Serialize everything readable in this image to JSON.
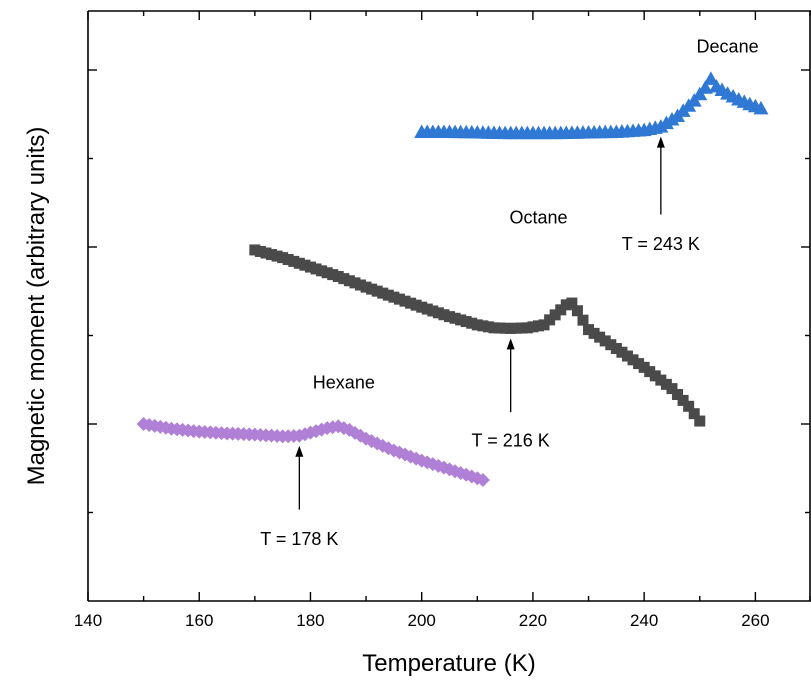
{
  "chart_data": {
    "type": "scatter",
    "xlabel": "Temperature (K)",
    "ylabel": "Magnetic moment (arbitrary units)",
    "xlim": [
      140,
      270
    ],
    "ylim": [
      0,
      10
    ],
    "x_ticks": [
      140,
      160,
      180,
      200,
      220,
      240,
      260
    ],
    "x_minor_ticks": [
      150,
      170,
      190,
      210,
      230,
      250,
      270
    ],
    "y_ticks_unlabeled": [
      3.0,
      6.0,
      9.0
    ],
    "y_minor_ticks": [
      1.5,
      4.5,
      7.5
    ],
    "grid": false,
    "series": [
      {
        "name": "Hexane",
        "marker": "diamond",
        "color": "#b07fd6",
        "points": [
          [
            150,
            3.0
          ],
          [
            155,
            2.92
          ],
          [
            160,
            2.87
          ],
          [
            165,
            2.84
          ],
          [
            170,
            2.82
          ],
          [
            175,
            2.79
          ],
          [
            178,
            2.8
          ],
          [
            181,
            2.88
          ],
          [
            183,
            2.93
          ],
          [
            185,
            2.96
          ],
          [
            187,
            2.9
          ],
          [
            190,
            2.75
          ],
          [
            195,
            2.55
          ],
          [
            200,
            2.38
          ],
          [
            205,
            2.23
          ],
          [
            211,
            2.05
          ]
        ]
      },
      {
        "name": "Octane",
        "marker": "square",
        "color": "#4a4a4a",
        "points": [
          [
            170,
            5.95
          ],
          [
            175,
            5.82
          ],
          [
            180,
            5.66
          ],
          [
            185,
            5.5
          ],
          [
            190,
            5.32
          ],
          [
            195,
            5.15
          ],
          [
            200,
            4.98
          ],
          [
            205,
            4.82
          ],
          [
            210,
            4.68
          ],
          [
            213,
            4.63
          ],
          [
            216,
            4.62
          ],
          [
            219,
            4.63
          ],
          [
            222,
            4.68
          ],
          [
            224,
            4.85
          ],
          [
            226,
            5.02
          ],
          [
            227,
            5.05
          ],
          [
            228,
            4.92
          ],
          [
            230,
            4.6
          ],
          [
            235,
            4.28
          ],
          [
            240,
            3.96
          ],
          [
            245,
            3.6
          ],
          [
            248,
            3.3
          ],
          [
            250,
            3.05
          ]
        ]
      },
      {
        "name": "Decane",
        "marker": "triangle",
        "color": "#2f78d4",
        "points": [
          [
            200,
            7.95
          ],
          [
            205,
            7.95
          ],
          [
            210,
            7.94
          ],
          [
            215,
            7.93
          ],
          [
            220,
            7.93
          ],
          [
            225,
            7.93
          ],
          [
            230,
            7.94
          ],
          [
            235,
            7.95
          ],
          [
            240,
            7.98
          ],
          [
            243,
            8.04
          ],
          [
            246,
            8.22
          ],
          [
            249,
            8.48
          ],
          [
            251,
            8.7
          ],
          [
            252,
            8.85
          ],
          [
            253,
            8.72
          ],
          [
            255,
            8.6
          ],
          [
            257,
            8.5
          ],
          [
            259,
            8.42
          ],
          [
            261,
            8.35
          ]
        ]
      }
    ],
    "labels": [
      {
        "text": "Hexane",
        "x": 186,
        "y": 3.6
      },
      {
        "text": "Octane",
        "x": 221,
        "y": 6.4
      },
      {
        "text": "Decane",
        "x": 255,
        "y": 9.3
      }
    ],
    "annotations": [
      {
        "text": "T = 178 K",
        "x": 178,
        "arrow_tip_y": 2.8,
        "arrow_base_y": 1.55,
        "label_y": 0.95
      },
      {
        "text": "T = 216 K",
        "x": 216,
        "arrow_tip_y": 4.62,
        "arrow_base_y": 3.2,
        "label_y": 2.62
      },
      {
        "text": "T = 243 K",
        "x": 243,
        "arrow_tip_y": 8.04,
        "arrow_base_y": 6.55,
        "label_y": 5.95
      }
    ]
  }
}
